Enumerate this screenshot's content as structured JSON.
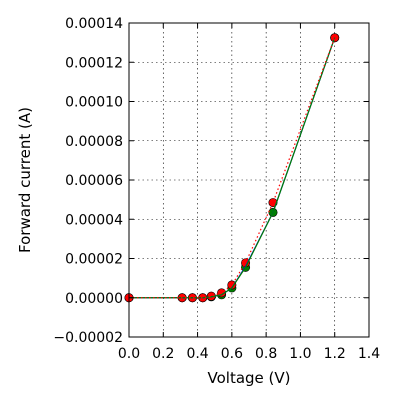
{
  "chart_data": {
    "type": "line",
    "title": "",
    "xlabel": "Voltage (V)",
    "ylabel": "Forward current (A)",
    "xlim": [
      0.0,
      1.4
    ],
    "ylim": [
      -2e-05,
      0.00014
    ],
    "x_ticks": [
      0.0,
      0.2,
      0.4,
      0.6,
      0.8,
      1.0,
      1.2,
      1.4
    ],
    "x_tick_labels": [
      "0.0",
      "0.2",
      "0.4",
      "0.6",
      "0.8",
      "1.0",
      "1.2",
      "1.4"
    ],
    "y_ticks": [
      -2e-05,
      0.0,
      2e-05,
      4e-05,
      6e-05,
      8e-05,
      0.0001,
      0.00012,
      0.00014
    ],
    "y_tick_labels": [
      "−0.00002",
      "0.00000",
      "0.00002",
      "0.00004",
      "0.00006",
      "0.00008",
      "0.00010",
      "0.00012",
      "0.00014"
    ],
    "grid": true,
    "series": [
      {
        "color": "#0000ff",
        "line_style": "solid",
        "marker": "none",
        "x": [
          0.0,
          0.31,
          0.37,
          0.43,
          0.48,
          0.54,
          0.6,
          0.68,
          0.84,
          1.2
        ],
        "y": [
          0.0,
          0.0,
          0.0,
          0.0,
          5e-07,
          1.5e-06,
          5e-06,
          1.6e-05,
          4.35e-05,
          0.0001325
        ]
      },
      {
        "color": "#008000",
        "line_style": "solid",
        "marker": "circle",
        "x": [
          0.0,
          0.31,
          0.37,
          0.43,
          0.48,
          0.54,
          0.6,
          0.68,
          0.84,
          1.2
        ],
        "y": [
          0.0,
          0.0,
          0.0,
          0.0,
          5e-07,
          1.5e-06,
          5e-06,
          1.55e-05,
          4.35e-05,
          0.0001325
        ]
      },
      {
        "color": "#ff0000",
        "line_style": "dotted",
        "marker": "circle",
        "x": [
          0.0,
          0.31,
          0.37,
          0.43,
          0.48,
          0.54,
          0.6,
          0.68,
          0.84,
          1.2
        ],
        "y": [
          0.0,
          0.0,
          0.0,
          0.0,
          8e-07,
          2.5e-06,
          6.5e-06,
          1.78e-05,
          4.85e-05,
          0.0001325
        ]
      }
    ]
  }
}
